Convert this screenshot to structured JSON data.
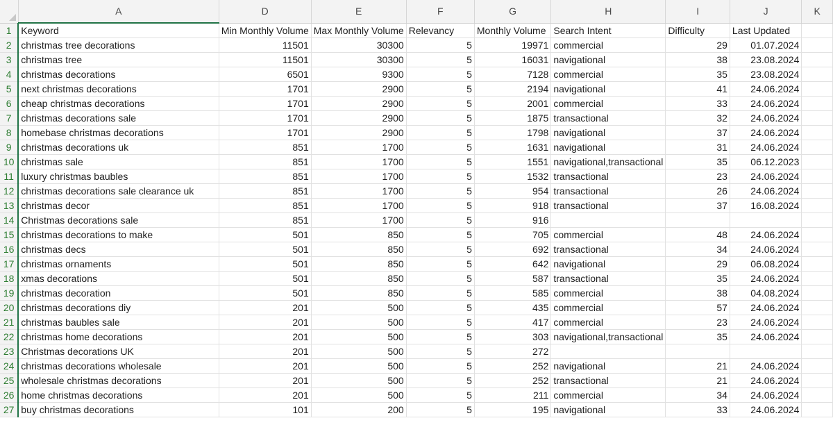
{
  "column_letters": [
    "A",
    "D",
    "E",
    "F",
    "G",
    "H",
    "I",
    "J",
    "K"
  ],
  "header_row": {
    "num": "1",
    "cells": [
      "Keyword",
      "Min Monthly Volume",
      "Max Monthly Volume",
      "Relevancy",
      "Monthly Volume",
      "Search Intent",
      "Difficulty",
      "Last Updated",
      ""
    ]
  },
  "rows": [
    {
      "num": "2",
      "keyword": "christmas tree decorations",
      "min": "11501",
      "max": "30300",
      "rel": "5",
      "vol": "19971",
      "intent": "commercial",
      "diff": "29",
      "updated": "01.07.2024"
    },
    {
      "num": "3",
      "keyword": "christmas tree",
      "min": "11501",
      "max": "30300",
      "rel": "5",
      "vol": "16031",
      "intent": "navigational",
      "diff": "38",
      "updated": "23.08.2024"
    },
    {
      "num": "4",
      "keyword": "christmas decorations",
      "min": "6501",
      "max": "9300",
      "rel": "5",
      "vol": "7128",
      "intent": "commercial",
      "diff": "35",
      "updated": "23.08.2024"
    },
    {
      "num": "5",
      "keyword": "next christmas decorations",
      "min": "1701",
      "max": "2900",
      "rel": "5",
      "vol": "2194",
      "intent": "navigational",
      "diff": "41",
      "updated": "24.06.2024"
    },
    {
      "num": "6",
      "keyword": "cheap christmas decorations",
      "min": "1701",
      "max": "2900",
      "rel": "5",
      "vol": "2001",
      "intent": "commercial",
      "diff": "33",
      "updated": "24.06.2024"
    },
    {
      "num": "7",
      "keyword": "christmas decorations sale",
      "min": "1701",
      "max": "2900",
      "rel": "5",
      "vol": "1875",
      "intent": "transactional",
      "diff": "32",
      "updated": "24.06.2024"
    },
    {
      "num": "8",
      "keyword": "homebase christmas decorations",
      "min": "1701",
      "max": "2900",
      "rel": "5",
      "vol": "1798",
      "intent": "navigational",
      "diff": "37",
      "updated": "24.06.2024"
    },
    {
      "num": "9",
      "keyword": "christmas decorations uk",
      "min": "851",
      "max": "1700",
      "rel": "5",
      "vol": "1631",
      "intent": "navigational",
      "diff": "31",
      "updated": "24.06.2024"
    },
    {
      "num": "10",
      "keyword": "christmas sale",
      "min": "851",
      "max": "1700",
      "rel": "5",
      "vol": "1551",
      "intent": "navigational,transactional",
      "diff": "35",
      "updated": "06.12.2023"
    },
    {
      "num": "11",
      "keyword": "luxury christmas baubles",
      "min": "851",
      "max": "1700",
      "rel": "5",
      "vol": "1532",
      "intent": "transactional",
      "diff": "23",
      "updated": "24.06.2024"
    },
    {
      "num": "12",
      "keyword": "christmas decorations sale clearance uk",
      "min": "851",
      "max": "1700",
      "rel": "5",
      "vol": "954",
      "intent": "transactional",
      "diff": "26",
      "updated": "24.06.2024"
    },
    {
      "num": "13",
      "keyword": "christmas decor",
      "min": "851",
      "max": "1700",
      "rel": "5",
      "vol": "918",
      "intent": "transactional",
      "diff": "37",
      "updated": "16.08.2024"
    },
    {
      "num": "14",
      "keyword": "Christmas decorations sale",
      "min": "851",
      "max": "1700",
      "rel": "5",
      "vol": "916",
      "intent": "",
      "diff": "",
      "updated": ""
    },
    {
      "num": "15",
      "keyword": "christmas decorations to make",
      "min": "501",
      "max": "850",
      "rel": "5",
      "vol": "705",
      "intent": "commercial",
      "diff": "48",
      "updated": "24.06.2024"
    },
    {
      "num": "16",
      "keyword": "christmas decs",
      "min": "501",
      "max": "850",
      "rel": "5",
      "vol": "692",
      "intent": "transactional",
      "diff": "34",
      "updated": "24.06.2024"
    },
    {
      "num": "17",
      "keyword": "christmas ornaments",
      "min": "501",
      "max": "850",
      "rel": "5",
      "vol": "642",
      "intent": "navigational",
      "diff": "29",
      "updated": "06.08.2024"
    },
    {
      "num": "18",
      "keyword": "xmas decorations",
      "min": "501",
      "max": "850",
      "rel": "5",
      "vol": "587",
      "intent": "transactional",
      "diff": "35",
      "updated": "24.06.2024"
    },
    {
      "num": "19",
      "keyword": "christmas decoration",
      "min": "501",
      "max": "850",
      "rel": "5",
      "vol": "585",
      "intent": "commercial",
      "diff": "38",
      "updated": "04.08.2024"
    },
    {
      "num": "20",
      "keyword": "christmas decorations diy",
      "min": "201",
      "max": "500",
      "rel": "5",
      "vol": "435",
      "intent": "commercial",
      "diff": "57",
      "updated": "24.06.2024"
    },
    {
      "num": "21",
      "keyword": "christmas baubles sale",
      "min": "201",
      "max": "500",
      "rel": "5",
      "vol": "417",
      "intent": "commercial",
      "diff": "23",
      "updated": "24.06.2024"
    },
    {
      "num": "22",
      "keyword": "christmas home decorations",
      "min": "201",
      "max": "500",
      "rel": "5",
      "vol": "303",
      "intent": "navigational,transactional",
      "diff": "35",
      "updated": "24.06.2024"
    },
    {
      "num": "23",
      "keyword": "Christmas decorations UK",
      "min": "201",
      "max": "500",
      "rel": "5",
      "vol": "272",
      "intent": "",
      "diff": "",
      "updated": ""
    },
    {
      "num": "24",
      "keyword": "christmas decorations wholesale",
      "min": "201",
      "max": "500",
      "rel": "5",
      "vol": "252",
      "intent": "navigational",
      "diff": "21",
      "updated": "24.06.2024"
    },
    {
      "num": "25",
      "keyword": "wholesale christmas decorations",
      "min": "201",
      "max": "500",
      "rel": "5",
      "vol": "252",
      "intent": "transactional",
      "diff": "21",
      "updated": "24.06.2024"
    },
    {
      "num": "26",
      "keyword": "home christmas decorations",
      "min": "201",
      "max": "500",
      "rel": "5",
      "vol": "211",
      "intent": "commercial",
      "diff": "34",
      "updated": "24.06.2024"
    },
    {
      "num": "27",
      "keyword": "buy christmas decorations",
      "min": "101",
      "max": "200",
      "rel": "5",
      "vol": "195",
      "intent": "navigational",
      "diff": "33",
      "updated": "24.06.2024"
    }
  ],
  "colors": {
    "row_number_green": "#2e7d32",
    "header_bg": "#f3f3f3",
    "gridline": "#e1e1e1",
    "selection": "#217346"
  }
}
